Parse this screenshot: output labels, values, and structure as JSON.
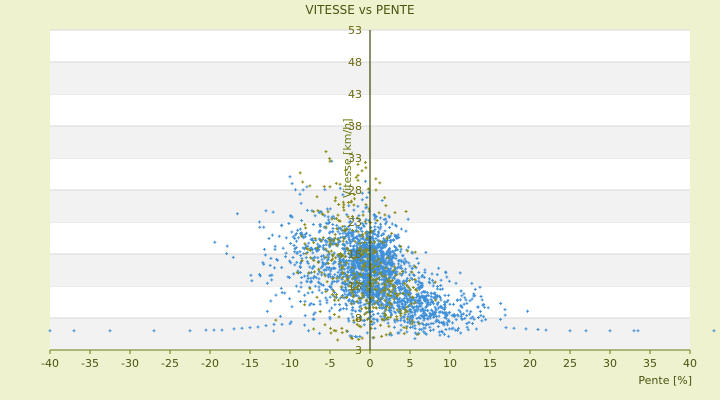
{
  "chart_data": {
    "type": "scatter",
    "title": "VITESSE vs PENTE",
    "xlabel": "Pente [%]",
    "ylabel": "Vitesse [km/h]",
    "xlim": [
      -40,
      40
    ],
    "ylim": [
      3,
      53
    ],
    "x_ticks": [
      "-40",
      "-35",
      "-30",
      "-25",
      "-20",
      "-15",
      "-10",
      "-5",
      "0",
      "5",
      "10",
      "15",
      "20",
      "25",
      "30",
      "35",
      "40"
    ],
    "y_ticks": [
      "3",
      "8",
      "13",
      "18",
      "23",
      "28",
      "33",
      "38",
      "43",
      "48",
      "53"
    ],
    "grid": "horizontal bands",
    "legend": "none",
    "series": [
      {
        "color": "#3f8fd8",
        "marker": "+",
        "clusters": [
          {
            "cx": 0.0,
            "cy": 16.0,
            "sx": 2.2,
            "sy": 3.2,
            "n": 1100
          },
          {
            "cx": 4.0,
            "cy": 11.0,
            "sx": 3.0,
            "sy": 2.5,
            "n": 450
          },
          {
            "cx": -4.0,
            "cy": 18.0,
            "sx": 3.5,
            "sy": 4.0,
            "n": 350
          },
          {
            "cx": 9.0,
            "cy": 8.5,
            "sx": 3.0,
            "sy": 1.6,
            "n": 220
          },
          {
            "cx": -9.0,
            "cy": 16.0,
            "sx": 3.5,
            "sy": 5.0,
            "n": 120
          }
        ],
        "flat_points": [
          [
            -40,
            6
          ],
          [
            -37,
            6
          ],
          [
            -32.5,
            6
          ],
          [
            -27,
            6
          ],
          [
            -22.5,
            6
          ],
          [
            -20.5,
            6.1
          ],
          [
            -19.5,
            6.1
          ],
          [
            -18.5,
            6.1
          ],
          [
            -17,
            6.3
          ],
          [
            -16,
            6.4
          ],
          [
            -15,
            6.5
          ],
          [
            -14,
            6.6
          ],
          [
            -13,
            6.8
          ],
          [
            -12,
            7
          ],
          [
            -11,
            7
          ],
          [
            -10,
            7.1
          ],
          [
            17,
            6.5
          ],
          [
            18,
            6.4
          ],
          [
            19.5,
            6.3
          ],
          [
            21,
            6.2
          ],
          [
            22,
            6.1
          ],
          [
            25,
            6
          ],
          [
            27,
            6
          ],
          [
            30,
            6
          ],
          [
            33,
            6
          ],
          [
            33.5,
            6
          ],
          [
            43,
            6
          ]
        ]
      },
      {
        "color": "#8a8a10",
        "marker": "+",
        "clusters": [
          {
            "cx": -2.5,
            "cy": 18.0,
            "sx": 3.0,
            "sy": 6.0,
            "n": 260
          },
          {
            "cx": 2.0,
            "cy": 11.0,
            "sx": 2.5,
            "sy": 3.0,
            "n": 120
          }
        ],
        "flat_points": [
          [
            -5.5,
            34
          ],
          [
            -5,
            32.5
          ],
          [
            -1.5,
            32
          ],
          [
            -1,
            31
          ],
          [
            -1.5,
            29.5
          ],
          [
            -5,
            28.5
          ]
        ]
      }
    ]
  }
}
